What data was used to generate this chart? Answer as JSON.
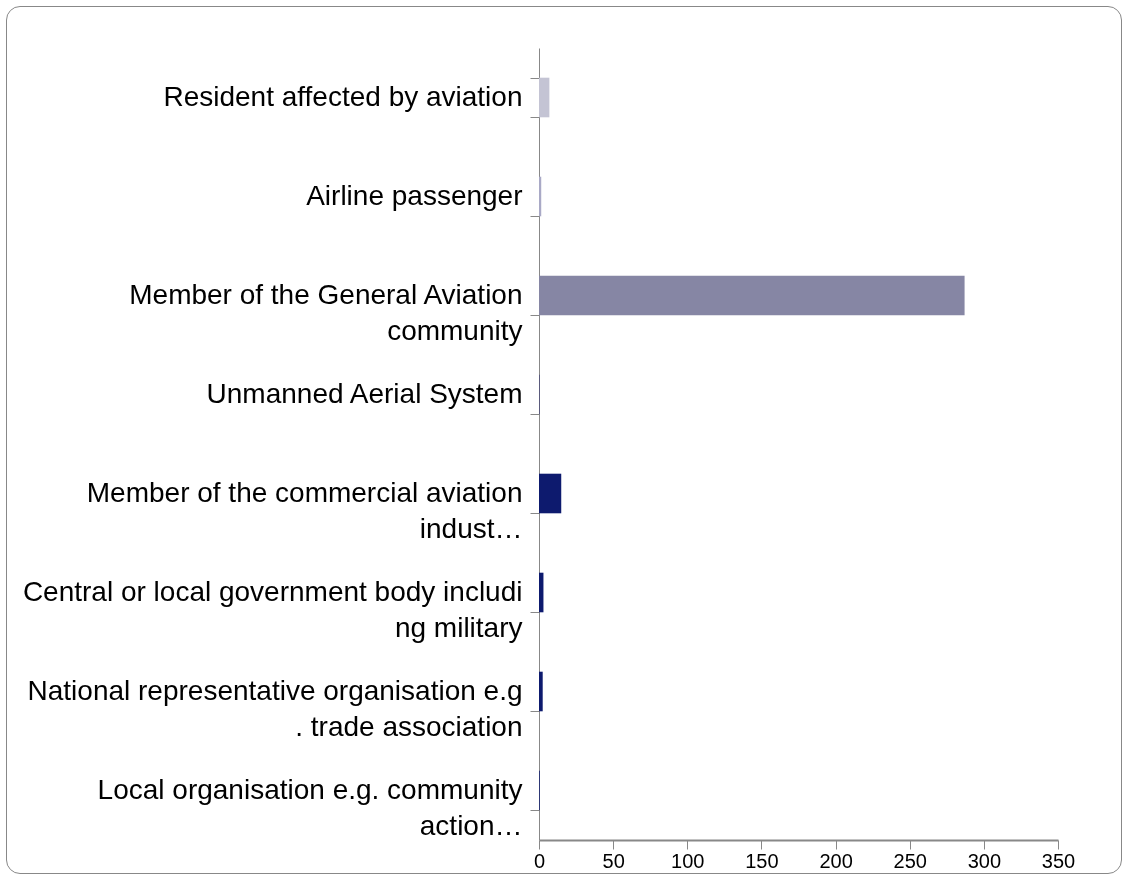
{
  "chart_data": {
    "type": "bar",
    "orientation": "horizontal",
    "categories": [
      "Resident affected by aviation",
      "Airline passenger",
      "Member of the General Aviation\ncommunity",
      "Unmanned Aerial System",
      "Member of the commercial aviation\nindust…",
      "Central or local government body includi\nng military",
      "National representative organisation e.g\n. trade association",
      "Local organisation e.g. community\naction…"
    ],
    "values": [
      7,
      1.5,
      287,
      0.5,
      15,
      3,
      2.5,
      0.5
    ],
    "colors": [
      "#c4c4d4",
      "#a9a9c6",
      "#8686a4",
      "#4a4a78",
      "#0d1a6e",
      "#0d1a6e",
      "#0d1a6e",
      "#0d1a6e"
    ],
    "xlim": [
      0,
      350
    ],
    "xticks": [
      0,
      50,
      100,
      150,
      200,
      250,
      300,
      350
    ],
    "grid": false
  }
}
